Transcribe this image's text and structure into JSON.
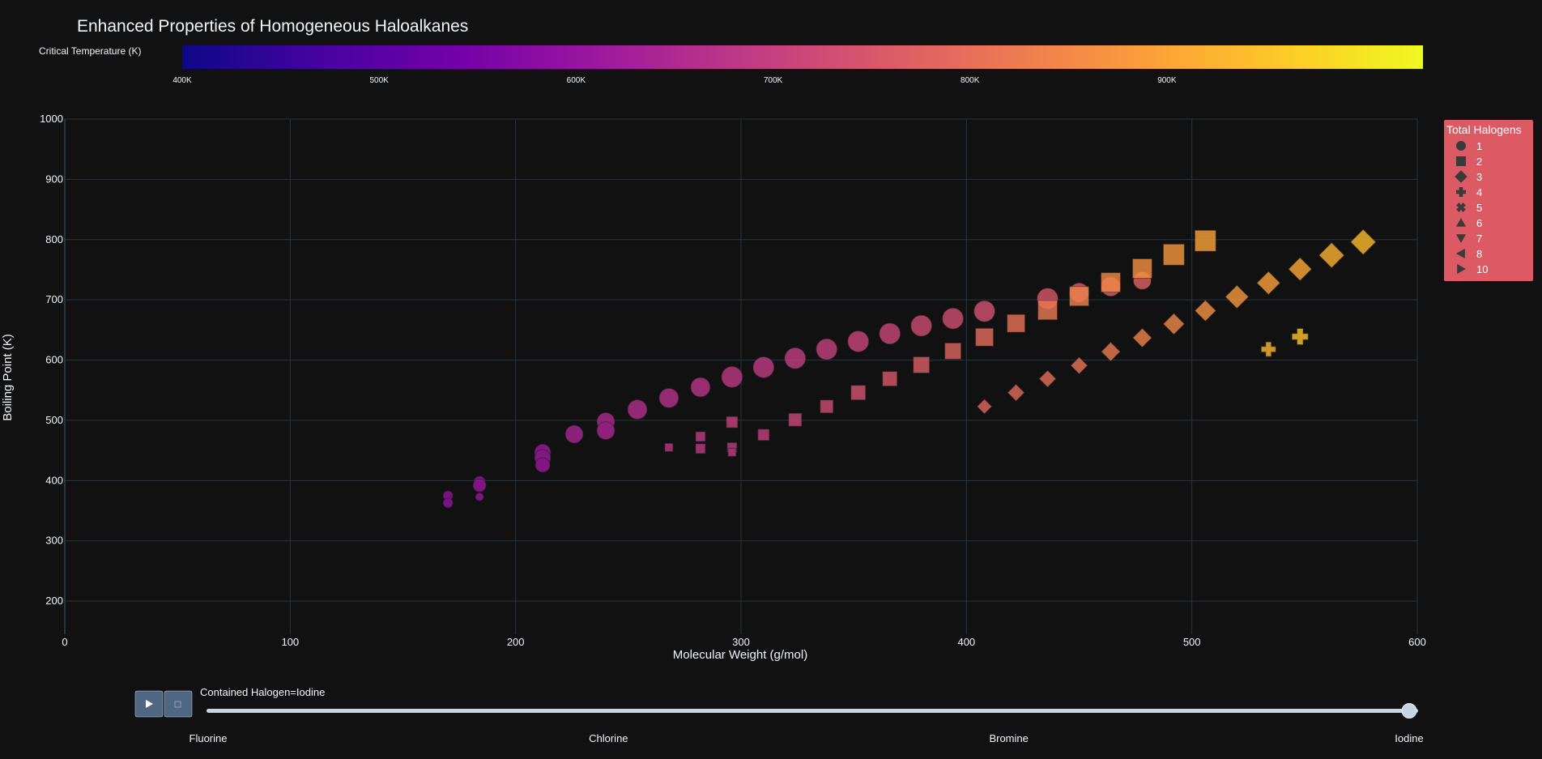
{
  "title": "Enhanced Properties of Homogeneous Haloalkanes",
  "colors": {
    "background": "#111111",
    "grid": "#283442",
    "legend_bg": "#dc5a64",
    "slider_rail": "#c8d4e3",
    "slider_button": "#506784"
  },
  "colorbar": {
    "title": "Critical Temperature (K)",
    "range": [
      400,
      1030
    ],
    "ticks": [
      {
        "value": 400,
        "label": "400K"
      },
      {
        "value": 500,
        "label": "500K"
      },
      {
        "value": 600,
        "label": "600K"
      },
      {
        "value": 700,
        "label": "700K"
      },
      {
        "value": 800,
        "label": "800K"
      },
      {
        "value": 900,
        "label": "900K"
      }
    ],
    "colorscale": "plasma"
  },
  "legend": {
    "title": "Total Halogens",
    "items": [
      {
        "label": "1",
        "symbol": "circle"
      },
      {
        "label": "2",
        "symbol": "square"
      },
      {
        "label": "3",
        "symbol": "diamond"
      },
      {
        "label": "4",
        "symbol": "cross"
      },
      {
        "label": "5",
        "symbol": "x"
      },
      {
        "label": "6",
        "symbol": "triangle-up"
      },
      {
        "label": "7",
        "symbol": "triangle-down"
      },
      {
        "label": "8",
        "symbol": "triangle-left"
      },
      {
        "label": "10",
        "symbol": "triangle-right"
      }
    ]
  },
  "slider": {
    "current_label": "Contained Halogen=Iodine",
    "steps": [
      "Fluorine",
      "Chlorine",
      "Bromine",
      "Iodine"
    ],
    "active_index": 3,
    "play_icon": "play-icon",
    "stop_icon": "stop-icon"
  },
  "chart_data": {
    "type": "scatter",
    "title": "Enhanced Properties of Homogeneous Haloalkanes",
    "xlabel": "Molecular Weight (g/mol)",
    "ylabel": "Boiling Point (K)",
    "xlim": [
      0,
      600
    ],
    "ylim": [
      145,
      1000
    ],
    "x_ticks": [
      0,
      100,
      200,
      300,
      400,
      500,
      600
    ],
    "y_ticks": [
      200,
      300,
      400,
      500,
      600,
      700,
      800,
      900,
      1000
    ],
    "grid": true,
    "legend_position": "top-right",
    "color_by": "Critical Temperature (K)",
    "series": [
      {
        "name": "1",
        "symbol": "circle",
        "points": [
          {
            "x": 170,
            "y": 375,
            "ct": 595,
            "size": 6
          },
          {
            "x": 170,
            "y": 363,
            "ct": 595,
            "size": 6
          },
          {
            "x": 184,
            "y": 398,
            "ct": 605,
            "size": 7
          },
          {
            "x": 184,
            "y": 392,
            "ct": 610,
            "size": 8
          },
          {
            "x": 184,
            "y": 373,
            "ct": 605,
            "size": 5
          },
          {
            "x": 212,
            "y": 447,
            "ct": 615,
            "size": 10
          },
          {
            "x": 212,
            "y": 438,
            "ct": 615,
            "size": 10
          },
          {
            "x": 212,
            "y": 426,
            "ct": 612,
            "size": 9
          },
          {
            "x": 226,
            "y": 477,
            "ct": 640,
            "size": 11
          },
          {
            "x": 240,
            "y": 498,
            "ct": 650,
            "size": 11
          },
          {
            "x": 240,
            "y": 483,
            "ct": 645,
            "size": 11
          },
          {
            "x": 254,
            "y": 518,
            "ct": 660,
            "size": 12
          },
          {
            "x": 268,
            "y": 537,
            "ct": 668,
            "size": 12
          },
          {
            "x": 282,
            "y": 555,
            "ct": 676,
            "size": 12
          },
          {
            "x": 296,
            "y": 572,
            "ct": 683,
            "size": 13
          },
          {
            "x": 310,
            "y": 588,
            "ct": 690,
            "size": 13
          },
          {
            "x": 324,
            "y": 603,
            "ct": 697,
            "size": 13
          },
          {
            "x": 338,
            "y": 618,
            "ct": 704,
            "size": 13
          },
          {
            "x": 352,
            "y": 631,
            "ct": 710,
            "size": 13
          },
          {
            "x": 366,
            "y": 644,
            "ct": 717,
            "size": 13
          },
          {
            "x": 380,
            "y": 657,
            "ct": 724,
            "size": 13
          },
          {
            "x": 394,
            "y": 669,
            "ct": 731,
            "size": 13
          },
          {
            "x": 408,
            "y": 681,
            "ct": 738,
            "size": 13
          },
          {
            "x": 436,
            "y": 702,
            "ct": 752,
            "size": 13
          },
          {
            "x": 450,
            "y": 712,
            "ct": 760,
            "size": 12
          },
          {
            "x": 464,
            "y": 722,
            "ct": 768,
            "size": 12
          },
          {
            "x": 478,
            "y": 732,
            "ct": 775,
            "size": 11
          }
        ]
      },
      {
        "name": "2",
        "symbol": "square",
        "points": [
          {
            "x": 268,
            "y": 455,
            "ct": 680,
            "size": 5
          },
          {
            "x": 282,
            "y": 473,
            "ct": 690,
            "size": 6
          },
          {
            "x": 282,
            "y": 453,
            "ct": 685,
            "size": 6
          },
          {
            "x": 296,
            "y": 497,
            "ct": 705,
            "size": 7
          },
          {
            "x": 296,
            "y": 455,
            "ct": 690,
            "size": 6
          },
          {
            "x": 296,
            "y": 447,
            "ct": 688,
            "size": 5
          },
          {
            "x": 310,
            "y": 476,
            "ct": 700,
            "size": 7
          },
          {
            "x": 324,
            "y": 501,
            "ct": 715,
            "size": 8
          },
          {
            "x": 338,
            "y": 523,
            "ct": 725,
            "size": 8
          },
          {
            "x": 352,
            "y": 546,
            "ct": 738,
            "size": 9
          },
          {
            "x": 366,
            "y": 569,
            "ct": 752,
            "size": 9
          },
          {
            "x": 380,
            "y": 592,
            "ct": 765,
            "size": 10
          },
          {
            "x": 394,
            "y": 615,
            "ct": 780,
            "size": 10
          },
          {
            "x": 408,
            "y": 638,
            "ct": 795,
            "size": 11
          },
          {
            "x": 422,
            "y": 661,
            "ct": 808,
            "size": 11
          },
          {
            "x": 436,
            "y": 683,
            "ct": 822,
            "size": 12
          },
          {
            "x": 450,
            "y": 706,
            "ct": 836,
            "size": 12
          },
          {
            "x": 464,
            "y": 729,
            "ct": 850,
            "size": 12
          },
          {
            "x": 478,
            "y": 752,
            "ct": 865,
            "size": 12
          },
          {
            "x": 492,
            "y": 775,
            "ct": 880,
            "size": 13
          },
          {
            "x": 506,
            "y": 798,
            "ct": 895,
            "size": 13
          }
        ]
      },
      {
        "name": "3",
        "symbol": "diamond",
        "points": [
          {
            "x": 408,
            "y": 523,
            "ct": 780,
            "size": 7
          },
          {
            "x": 422,
            "y": 546,
            "ct": 790,
            "size": 8
          },
          {
            "x": 436,
            "y": 569,
            "ct": 800,
            "size": 8
          },
          {
            "x": 450,
            "y": 591,
            "ct": 812,
            "size": 8
          },
          {
            "x": 464,
            "y": 614,
            "ct": 825,
            "size": 9
          },
          {
            "x": 478,
            "y": 637,
            "ct": 838,
            "size": 9
          },
          {
            "x": 492,
            "y": 660,
            "ct": 852,
            "size": 10
          },
          {
            "x": 506,
            "y": 682,
            "ct": 866,
            "size": 10
          },
          {
            "x": 520,
            "y": 705,
            "ct": 880,
            "size": 11
          },
          {
            "x": 534,
            "y": 728,
            "ct": 894,
            "size": 11
          },
          {
            "x": 548,
            "y": 751,
            "ct": 908,
            "size": 11
          },
          {
            "x": 562,
            "y": 774,
            "ct": 922,
            "size": 12
          },
          {
            "x": 576,
            "y": 796,
            "ct": 935,
            "size": 12
          }
        ]
      },
      {
        "name": "4",
        "symbol": "cross",
        "points": [
          {
            "x": 534,
            "y": 618,
            "ct": 930,
            "size": 9
          },
          {
            "x": 548,
            "y": 639,
            "ct": 950,
            "size": 10
          }
        ]
      }
    ]
  }
}
